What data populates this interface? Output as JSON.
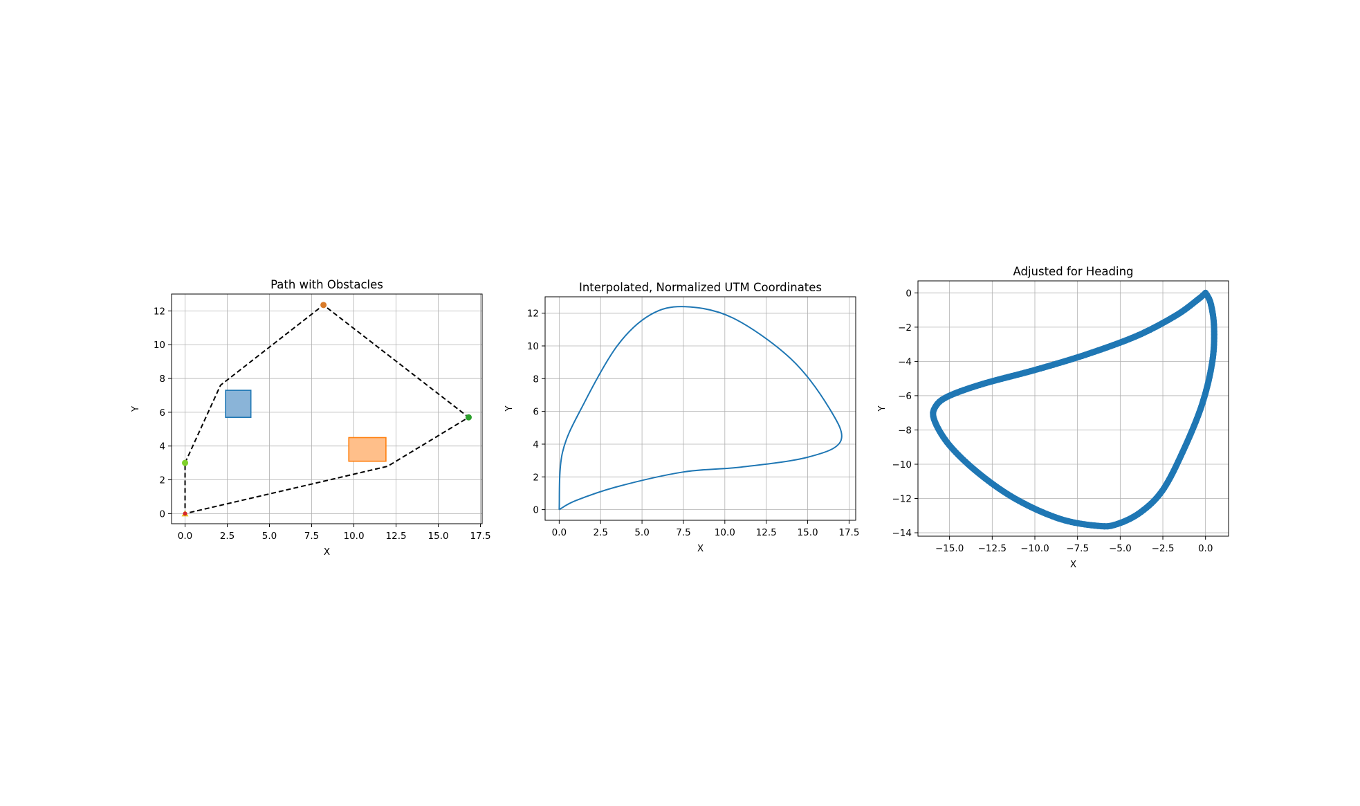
{
  "chart_data": [
    {
      "type": "line",
      "title": "Path with Obstacles",
      "xlabel": "X",
      "ylabel": "Y",
      "xlim": [
        -0.8,
        17.6
      ],
      "ylim": [
        -0.6,
        13.0
      ],
      "xticks": [
        "0.0",
        "2.5",
        "5.0",
        "7.5",
        "10.0",
        "12.5",
        "15.0",
        "17.5"
      ],
      "yticks": [
        "0",
        "2",
        "4",
        "6",
        "8",
        "10",
        "12"
      ],
      "grid": true,
      "series": [
        {
          "style": "dashed",
          "color": "#000000",
          "points": [
            [
              0,
              3.0
            ],
            [
              2.1,
              7.6
            ],
            [
              8.2,
              12.35
            ],
            [
              16.8,
              5.7
            ],
            [
              12.0,
              2.8
            ],
            [
              0,
              0
            ],
            [
              0,
              3.0
            ]
          ]
        }
      ],
      "waypoints": [
        {
          "x": 0,
          "y": 3.0,
          "color": "#7fd12a"
        },
        {
          "x": 8.2,
          "y": 12.35,
          "color": "#d97b2a"
        },
        {
          "x": 16.8,
          "y": 5.7,
          "color": "#2ca02c"
        },
        {
          "x": 0,
          "y": 0,
          "color": "#d62728",
          "extra_color": "#e6c422"
        }
      ],
      "obstacles": [
        {
          "x0": 2.4,
          "y0": 5.7,
          "x1": 3.9,
          "y1": 7.3,
          "fill": "#8ab4d8",
          "stroke": "#1f77b4"
        },
        {
          "x0": 9.7,
          "y0": 3.1,
          "x1": 11.9,
          "y1": 4.5,
          "fill": "#ffbf8a",
          "stroke": "#ff7f0e"
        }
      ]
    },
    {
      "type": "line",
      "title": "Interpolated, Normalized UTM Coordinates",
      "xlabel": "X",
      "ylabel": "Y",
      "xlim": [
        -0.85,
        17.9
      ],
      "ylim": [
        -0.65,
        13.0
      ],
      "xticks": [
        "0.0",
        "2.5",
        "5.0",
        "7.5",
        "10.0",
        "12.5",
        "15.0",
        "17.5"
      ],
      "yticks": [
        "0",
        "2",
        "4",
        "6",
        "8",
        "10",
        "12"
      ],
      "grid": true,
      "series": [
        {
          "style": "solid",
          "color": "#1f77b4",
          "points": [
            [
              0,
              0
            ],
            [
              0.2,
              3.5
            ],
            [
              1.5,
              6.5
            ],
            [
              3.5,
              10
            ],
            [
              5.5,
              11.9
            ],
            [
              7.6,
              12.4
            ],
            [
              10.5,
              11.7
            ],
            [
              14,
              9.2
            ],
            [
              16.3,
              6.2
            ],
            [
              17.0,
              4.2
            ],
            [
              15.0,
              3.2
            ],
            [
              11.0,
              2.6
            ],
            [
              7.5,
              2.3
            ],
            [
              3.5,
              1.4
            ],
            [
              1.0,
              0.55
            ],
            [
              0,
              0
            ]
          ]
        }
      ]
    },
    {
      "type": "scatter",
      "title": "Adjusted for Heading",
      "xlabel": "X",
      "ylabel": "Y",
      "xlim": [
        -16.85,
        1.35
      ],
      "ylim": [
        -14.2,
        0.7
      ],
      "xticks": [
        "−15.0",
        "−12.5",
        "−10.0",
        "−7.5",
        "−5.0",
        "−2.5",
        "0.0"
      ],
      "yticks": [
        "0",
        "−2",
        "−4",
        "−6",
        "−8",
        "−10",
        "−12",
        "−14"
      ],
      "grid": true,
      "series": [
        {
          "style": "line-with-markers",
          "color": "#1f77b4",
          "points": [
            [
              0,
              0
            ],
            [
              0.3,
              -0.6
            ],
            [
              0.5,
              -2.0
            ],
            [
              0.4,
              -4.0
            ],
            [
              -0.2,
              -6.5
            ],
            [
              -1.3,
              -9.2
            ],
            [
              -2.5,
              -11.5
            ],
            [
              -3.8,
              -12.8
            ],
            [
              -5.2,
              -13.5
            ],
            [
              -6.3,
              -13.6
            ],
            [
              -8.5,
              -13.2
            ],
            [
              -11.0,
              -12.1
            ],
            [
              -13.2,
              -10.6
            ],
            [
              -15.0,
              -8.9
            ],
            [
              -15.9,
              -7.4
            ],
            [
              -15.8,
              -6.6
            ],
            [
              -15.0,
              -6.0
            ],
            [
              -13.0,
              -5.3
            ],
            [
              -10.0,
              -4.5
            ],
            [
              -7.0,
              -3.6
            ],
            [
              -4.0,
              -2.5
            ],
            [
              -1.7,
              -1.3
            ],
            [
              -0.4,
              -0.35
            ],
            [
              0,
              0
            ]
          ]
        }
      ]
    }
  ]
}
